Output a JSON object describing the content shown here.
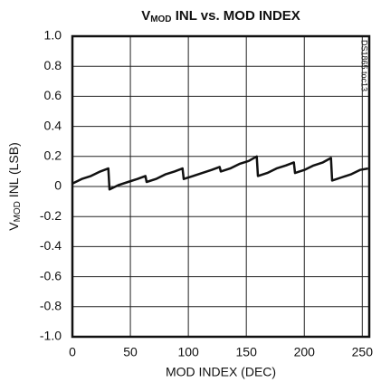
{
  "chart_data": {
    "type": "line",
    "title": {
      "main": "V",
      "sub": "MOD",
      "rest": " INL vs. MOD INDEX"
    },
    "x_label": "MOD INDEX (DEC)",
    "y_label": {
      "main": "V",
      "sub": "MOD",
      "rest": " INL (LSB)"
    },
    "note": "DS1865 toc13",
    "xlim": [
      0,
      256
    ],
    "ylim": [
      -1,
      1
    ],
    "xticks": [
      0,
      50,
      100,
      150,
      200,
      250
    ],
    "yticks": [
      {
        "value": 1,
        "label": "1.0"
      },
      0.8,
      0.6,
      0.4,
      0.2,
      0,
      -0.2,
      -0.4,
      -0.6,
      -0.8,
      {
        "value": -1,
        "label": "-1.0"
      }
    ],
    "grid": true,
    "series": [
      {
        "color": "#111111",
        "x": [
          0,
          8,
          16,
          24,
          31,
          32,
          40,
          48,
          56,
          63,
          64,
          72,
          80,
          88,
          95,
          96,
          104,
          112,
          120,
          127,
          128,
          136,
          144,
          152,
          159,
          160,
          168,
          176,
          184,
          191,
          192,
          200,
          208,
          216,
          223,
          224,
          232,
          240,
          248,
          255
        ],
        "values": [
          0.02,
          0.05,
          0.07,
          0.1,
          0.12,
          -0.02,
          0.01,
          0.03,
          0.05,
          0.07,
          0.03,
          0.05,
          0.08,
          0.1,
          0.12,
          0.05,
          0.07,
          0.09,
          0.11,
          0.13,
          0.1,
          0.12,
          0.15,
          0.17,
          0.2,
          0.07,
          0.09,
          0.12,
          0.14,
          0.16,
          0.09,
          0.11,
          0.14,
          0.16,
          0.19,
          0.04,
          0.06,
          0.08,
          0.11,
          0.12
        ]
      }
    ]
  }
}
